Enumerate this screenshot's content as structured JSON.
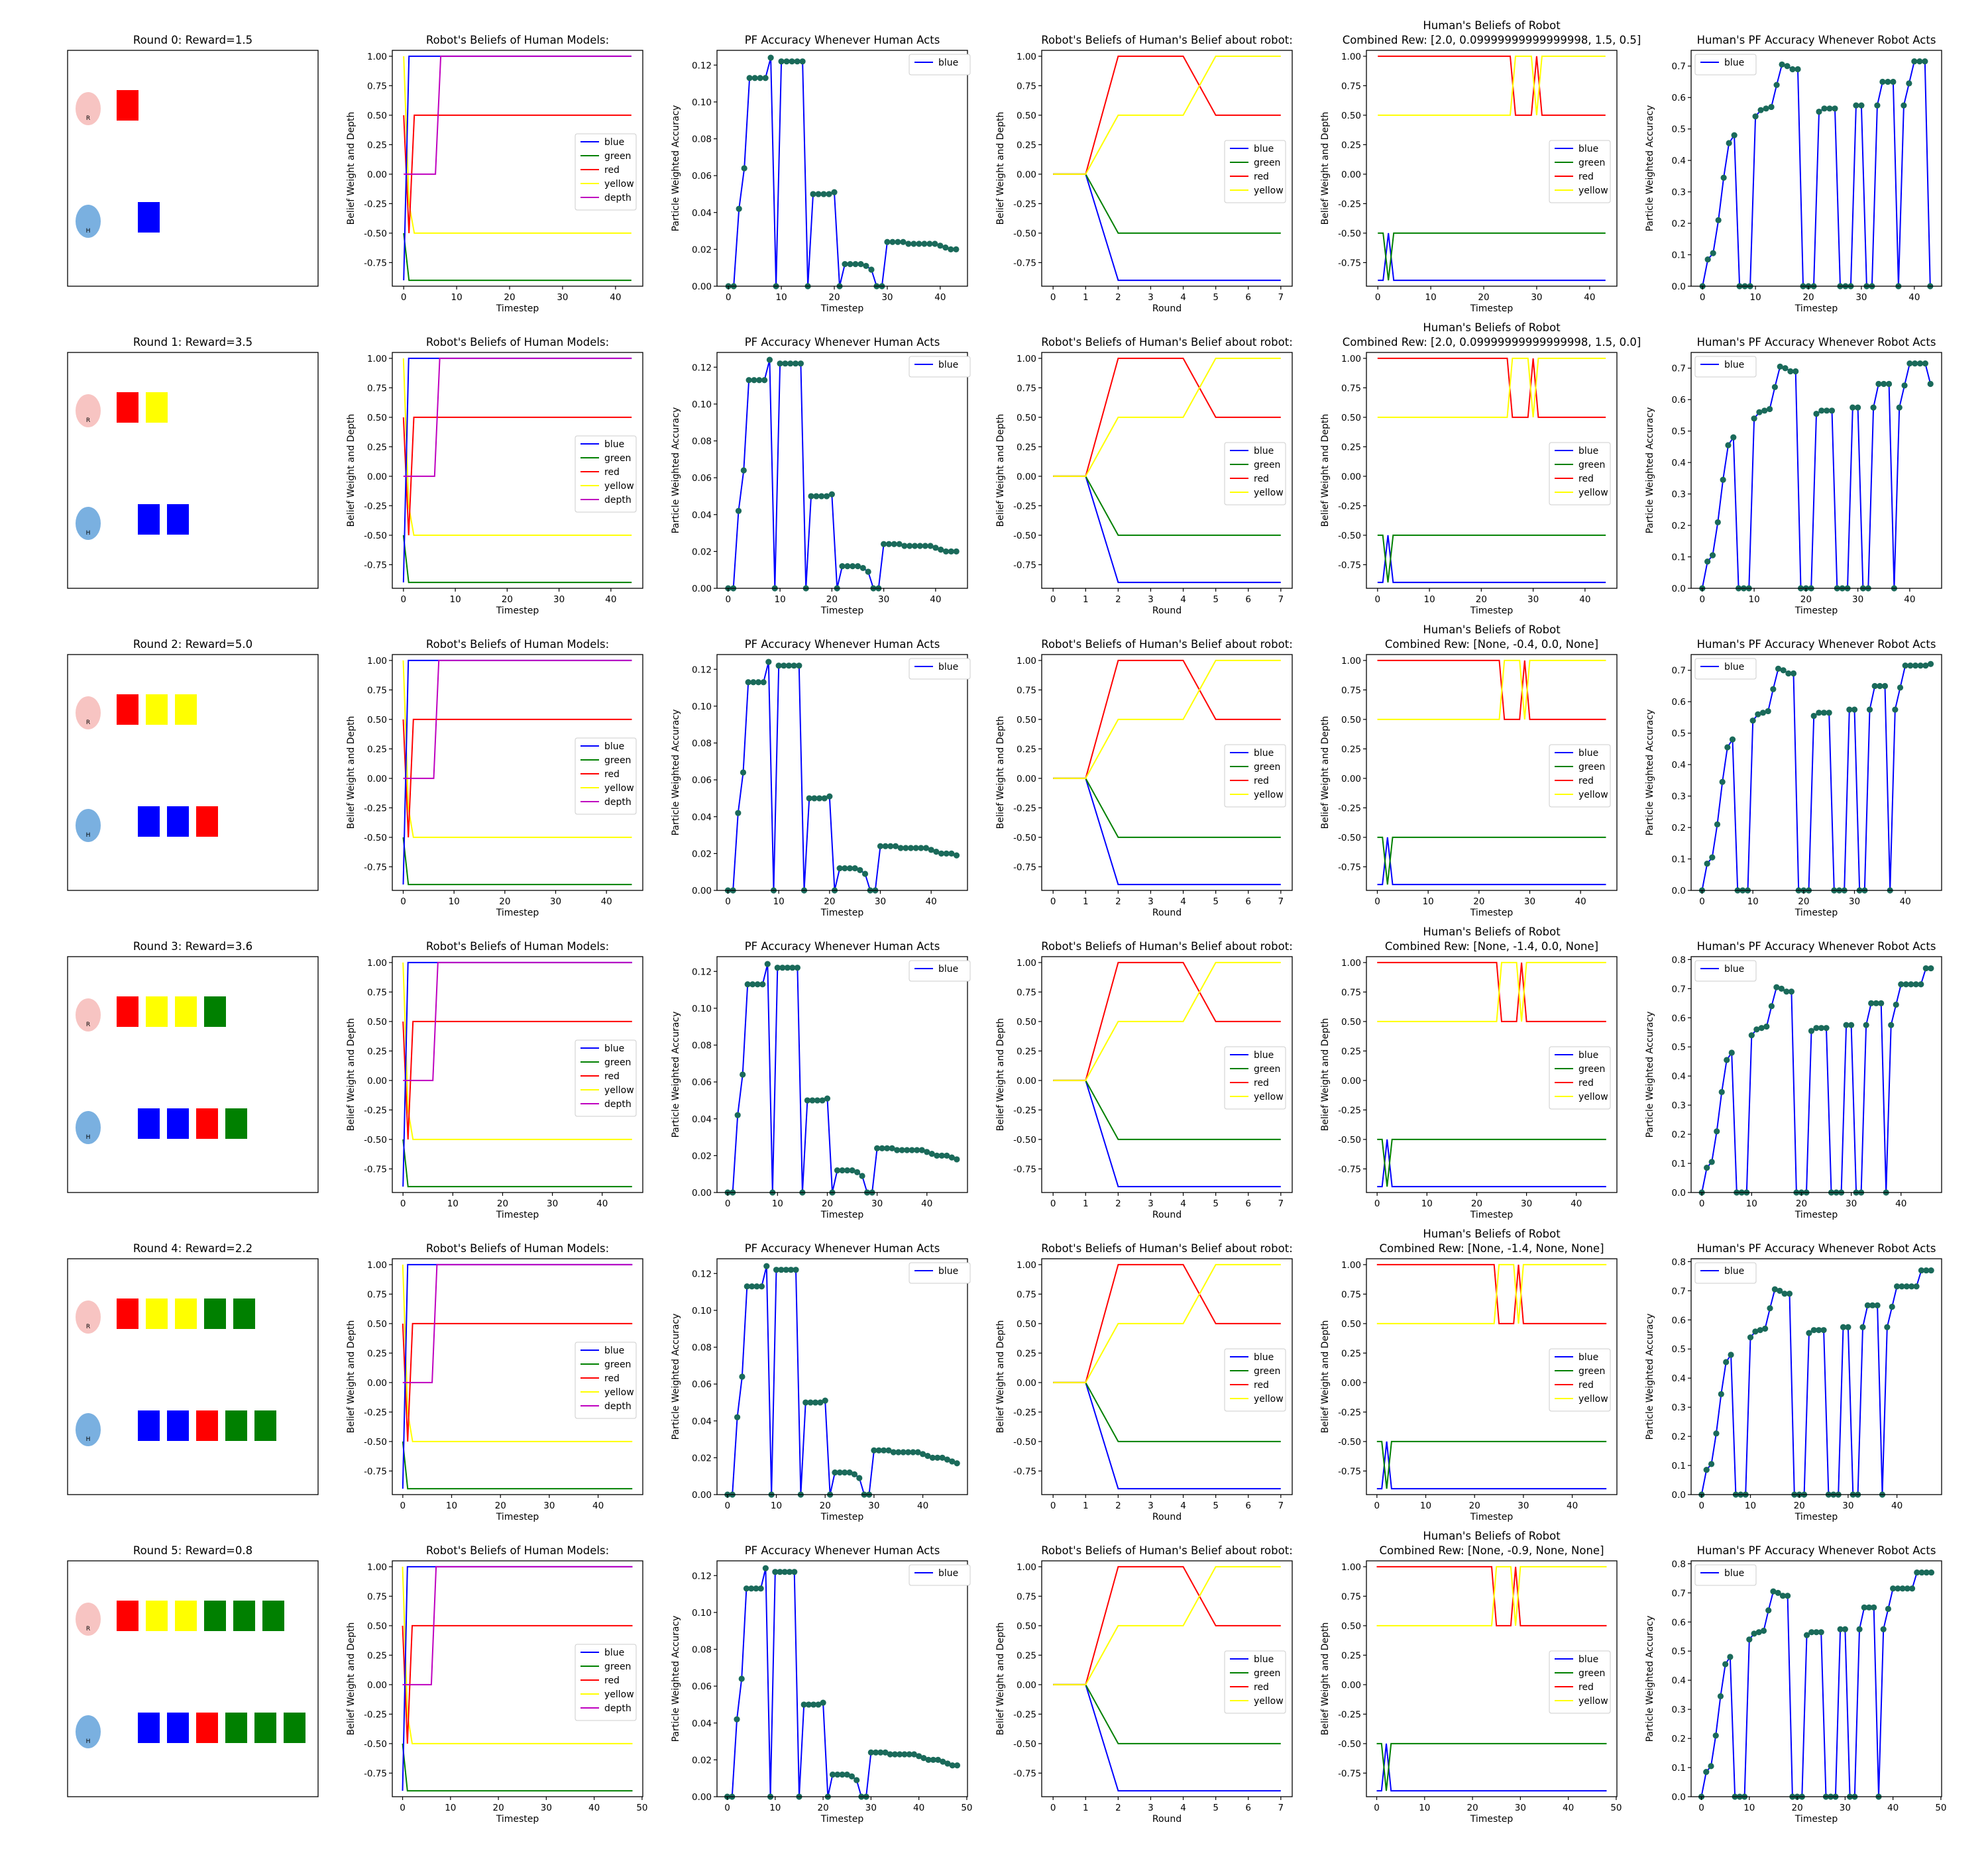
{
  "figure": {
    "ytitle_belief": "Belief Weight and Depth",
    "ytitle_pf": "Particle Weighted Accuracy",
    "xtitle_timestep": "Timestep",
    "xtitle_round": "Round"
  },
  "colors": {
    "blue": "#0000ff",
    "green": "#008000",
    "red": "#ff0000",
    "yellow": "#ffff00",
    "depth": "#bf00bf",
    "marker": "#1a6a5a",
    "robot": "#f7c4c2",
    "human": "#7ab0e0"
  },
  "rounds": [
    {
      "title": "Round 0: Reward=1.5",
      "robot_label": "R",
      "human_label": "H",
      "robot_blocks": [
        "red"
      ],
      "human_blocks": [
        "blue"
      ]
    },
    {
      "title": "Round 1: Reward=3.5",
      "robot_label": "R",
      "human_label": "H",
      "robot_blocks": [
        "red",
        "yellow"
      ],
      "human_blocks": [
        "blue",
        "blue"
      ]
    },
    {
      "title": "Round 2: Reward=5.0",
      "robot_label": "R",
      "human_label": "H",
      "robot_blocks": [
        "red",
        "yellow",
        "yellow"
      ],
      "human_blocks": [
        "blue",
        "blue",
        "red"
      ]
    },
    {
      "title": "Round 3: Reward=3.6",
      "robot_label": "R",
      "human_label": "H",
      "robot_blocks": [
        "red",
        "yellow",
        "yellow",
        "green"
      ],
      "human_blocks": [
        "blue",
        "blue",
        "red",
        "green"
      ]
    },
    {
      "title": "Round 4: Reward=2.2",
      "robot_label": "R",
      "human_label": "H",
      "robot_blocks": [
        "red",
        "yellow",
        "yellow",
        "green",
        "green"
      ],
      "human_blocks": [
        "blue",
        "blue",
        "red",
        "green",
        "green"
      ]
    },
    {
      "title": "Round 5: Reward=0.8",
      "robot_label": "R",
      "human_label": "H",
      "robot_blocks": [
        "red",
        "yellow",
        "yellow",
        "green",
        "green",
        "green"
      ],
      "human_blocks": [
        "blue",
        "blue",
        "red",
        "green",
        "green",
        "green"
      ]
    }
  ],
  "chart_data": {
    "type": "line",
    "rows": [
      {
        "xmax": 43,
        "col5_title1": "Human's Beliefs of Robot",
        "col5_title2": "Combined Rew: [2.0, 0.09999999999999998, 1.5, 0.5]",
        "xticks": [
          0,
          10,
          20,
          30,
          40
        ],
        "pf_yticks": [
          0.0,
          0.02,
          0.04,
          0.06,
          0.08,
          0.1,
          0.12
        ],
        "pf_ylim": [
          0,
          0.128
        ],
        "hpf_yticks": [
          0.0,
          0.1,
          0.2,
          0.3,
          0.4,
          0.5,
          0.6,
          0.7
        ],
        "hpf_ylim": [
          0,
          0.75
        ],
        "hpf_last": 0.0
      },
      {
        "xmax": 44,
        "col5_title1": "Human's Beliefs of Robot",
        "col5_title2": "Combined Rew: [2.0, 0.09999999999999998, 1.5, 0.0]",
        "xticks": [
          0,
          10,
          20,
          30,
          40
        ],
        "pf_yticks": [
          0.0,
          0.02,
          0.04,
          0.06,
          0.08,
          0.1,
          0.12
        ],
        "pf_ylim": [
          0,
          0.128
        ],
        "hpf_yticks": [
          0.0,
          0.1,
          0.2,
          0.3,
          0.4,
          0.5,
          0.6,
          0.7
        ],
        "hpf_ylim": [
          0,
          0.75
        ],
        "hpf_last": 0.65
      },
      {
        "xmax": 45,
        "col5_title1": "Human's Beliefs of Robot",
        "col5_title2": "Combined Rew: [None, -0.4, 0.0, None]",
        "xticks": [
          0,
          10,
          20,
          30,
          40
        ],
        "pf_yticks": [
          0.0,
          0.02,
          0.04,
          0.06,
          0.08,
          0.1,
          0.12
        ],
        "pf_ylim": [
          0,
          0.128
        ],
        "hpf_yticks": [
          0.0,
          0.1,
          0.2,
          0.3,
          0.4,
          0.5,
          0.6,
          0.7
        ],
        "hpf_ylim": [
          0,
          0.75
        ],
        "hpf_last": 0.72
      },
      {
        "xmax": 46,
        "col5_title1": "Human's Beliefs of Robot",
        "col5_title2": "Combined Rew: [None, -1.4, 0.0, None]",
        "xticks": [
          0,
          10,
          20,
          30,
          40
        ],
        "pf_yticks": [
          0.0,
          0.02,
          0.04,
          0.06,
          0.08,
          0.1,
          0.12
        ],
        "pf_ylim": [
          0,
          0.128
        ],
        "hpf_yticks": [
          0.0,
          0.1,
          0.2,
          0.3,
          0.4,
          0.5,
          0.6,
          0.7,
          0.8
        ],
        "hpf_ylim": [
          0,
          0.81
        ],
        "hpf_last": 0.77
      },
      {
        "xmax": 47,
        "col5_title1": "Human's Beliefs of Robot",
        "col5_title2": "Combined Rew: [None, -1.4, None, None]",
        "xticks": [
          0,
          10,
          20,
          30,
          40
        ],
        "pf_yticks": [
          0.0,
          0.02,
          0.04,
          0.06,
          0.08,
          0.1,
          0.12
        ],
        "pf_ylim": [
          0,
          0.128
        ],
        "hpf_yticks": [
          0.0,
          0.1,
          0.2,
          0.3,
          0.4,
          0.5,
          0.6,
          0.7,
          0.8
        ],
        "hpf_ylim": [
          0,
          0.81
        ],
        "hpf_last": 0.77
      },
      {
        "xmax": 48,
        "col5_title1": "Human's Beliefs of Robot",
        "col5_title2": "Combined Rew: [None, -0.9, None, None]",
        "xticks": [
          0,
          10,
          20,
          30,
          40,
          50
        ],
        "pf_yticks": [
          0.0,
          0.02,
          0.04,
          0.06,
          0.08,
          0.1,
          0.12
        ],
        "pf_ylim": [
          0,
          0.128
        ],
        "hpf_yticks": [
          0.0,
          0.1,
          0.2,
          0.3,
          0.4,
          0.5,
          0.6,
          0.7,
          0.8
        ],
        "hpf_ylim": [
          0,
          0.81
        ],
        "hpf_last": 0.77
      }
    ],
    "col2": {
      "title": "Robot's Beliefs of Human Models:",
      "ylim": [
        -0.95,
        1.05
      ],
      "yticks": [
        -0.75,
        -0.5,
        -0.25,
        0.0,
        0.25,
        0.5,
        0.75,
        1.0
      ],
      "legend": [
        "blue",
        "green",
        "red",
        "yellow",
        "depth"
      ],
      "series": {
        "blue": [
          [
            0,
            -0.9
          ],
          [
            1,
            1.0
          ],
          [
            99,
            1.0
          ]
        ],
        "green": [
          [
            0,
            -0.5
          ],
          [
            1,
            -0.9
          ],
          [
            99,
            -0.9
          ]
        ],
        "red": [
          [
            0,
            0.5
          ],
          [
            1,
            -0.5
          ],
          [
            2,
            0.5
          ],
          [
            99,
            0.5
          ]
        ],
        "yellow": [
          [
            0,
            1.0
          ],
          [
            1,
            -0.25
          ],
          [
            2,
            -0.5
          ],
          [
            99,
            -0.5
          ]
        ],
        "depth": [
          [
            0,
            0.0
          ],
          [
            6,
            0.0
          ],
          [
            7,
            1.0
          ],
          [
            99,
            1.0
          ]
        ]
      }
    },
    "col3": {
      "title": "PF Accuracy Whenever Human Acts",
      "legend": [
        "blue"
      ],
      "points": [
        [
          0,
          0
        ],
        [
          1,
          0
        ],
        [
          2,
          0.042
        ],
        [
          3,
          0.064
        ],
        [
          4,
          0.113
        ],
        [
          5,
          0.113
        ],
        [
          6,
          0.113
        ],
        [
          7,
          0.113
        ],
        [
          8,
          0.124
        ],
        [
          9,
          0
        ],
        [
          10,
          0.122
        ],
        [
          11,
          0.122
        ],
        [
          12,
          0.122
        ],
        [
          13,
          0.122
        ],
        [
          14,
          0.122
        ],
        [
          15,
          0
        ],
        [
          16,
          0.05
        ],
        [
          17,
          0.05
        ],
        [
          18,
          0.05
        ],
        [
          19,
          0.05
        ],
        [
          20,
          0.051
        ],
        [
          21,
          0
        ],
        [
          22,
          0.012
        ],
        [
          23,
          0.012
        ],
        [
          24,
          0.012
        ],
        [
          25,
          0.012
        ],
        [
          26,
          0.011
        ],
        [
          27,
          0.009
        ],
        [
          28,
          0
        ],
        [
          29,
          0
        ],
        [
          30,
          0.024
        ],
        [
          31,
          0.024
        ],
        [
          32,
          0.024
        ],
        [
          33,
          0.024
        ],
        [
          34,
          0.023
        ],
        [
          35,
          0.023
        ],
        [
          36,
          0.023
        ],
        [
          37,
          0.023
        ],
        [
          38,
          0.023
        ],
        [
          39,
          0.023
        ],
        [
          40,
          0.022
        ],
        [
          41,
          0.021
        ],
        [
          42,
          0.02
        ],
        [
          43,
          0.02
        ],
        [
          44,
          0.02
        ],
        [
          45,
          0.019
        ],
        [
          46,
          0.018
        ],
        [
          47,
          0.017
        ],
        [
          48,
          0.017
        ]
      ]
    },
    "col4": {
      "title": "Robot's Beliefs of Human's Belief about robot:",
      "xlim": [
        -0.35,
        7.35
      ],
      "xticks": [
        0,
        1,
        2,
        3,
        4,
        5,
        6,
        7
      ],
      "ylim": [
        -0.95,
        1.05
      ],
      "yticks": [
        -0.75,
        -0.5,
        -0.25,
        0.0,
        0.25,
        0.5,
        0.75,
        1.0
      ],
      "legend": [
        "blue",
        "green",
        "red",
        "yellow"
      ],
      "series": {
        "blue": [
          [
            0,
            0
          ],
          [
            1,
            0
          ],
          [
            2,
            -0.9
          ],
          [
            7,
            -0.9
          ]
        ],
        "green": [
          [
            0,
            0
          ],
          [
            1,
            0
          ],
          [
            2,
            -0.5
          ],
          [
            7,
            -0.5
          ]
        ],
        "red": [
          [
            0,
            0
          ],
          [
            1,
            0
          ],
          [
            2,
            1.0
          ],
          [
            4,
            1.0
          ],
          [
            5,
            0.5
          ],
          [
            7,
            0.5
          ]
        ],
        "yellow": [
          [
            0,
            0
          ],
          [
            1,
            0
          ],
          [
            2,
            0.5
          ],
          [
            4,
            0.5
          ],
          [
            5,
            1.0
          ],
          [
            7,
            1.0
          ]
        ]
      }
    },
    "col5": {
      "ylim": [
        -0.95,
        1.05
      ],
      "yticks": [
        -0.75,
        -0.5,
        -0.25,
        0.0,
        0.25,
        0.5,
        0.75,
        1.0
      ],
      "legend": [
        "blue",
        "green",
        "red",
        "yellow"
      ],
      "series": {
        "blue": [
          [
            0,
            -0.9
          ],
          [
            1,
            -0.9
          ],
          [
            2,
            -0.5
          ],
          [
            3,
            -0.9
          ],
          [
            99,
            -0.9
          ]
        ],
        "green": [
          [
            0,
            -0.5
          ],
          [
            1,
            -0.5
          ],
          [
            2,
            -0.9
          ],
          [
            3,
            -0.5
          ],
          [
            99,
            -0.5
          ]
        ],
        "red": [
          [
            0,
            1.0
          ],
          [
            25,
            1.0
          ],
          [
            26,
            0.5
          ],
          [
            29,
            0.5
          ],
          [
            30,
            1.0
          ],
          [
            31,
            0.5
          ],
          [
            99,
            0.5
          ]
        ],
        "yellow": [
          [
            0,
            0.5
          ],
          [
            25,
            0.5
          ],
          [
            26,
            1.0
          ],
          [
            29,
            1.0
          ],
          [
            30,
            0.5
          ],
          [
            31,
            1.0
          ],
          [
            99,
            1.0
          ]
        ]
      }
    },
    "col6": {
      "title": "Human's PF Accuracy Whenever Robot Acts",
      "legend": [
        "blue"
      ],
      "points": [
        [
          0,
          0
        ],
        [
          1,
          0.085
        ],
        [
          2,
          0.105
        ],
        [
          3,
          0.21
        ],
        [
          4,
          0.345
        ],
        [
          5,
          0.455
        ],
        [
          6,
          0.48
        ],
        [
          7,
          0
        ],
        [
          8,
          0
        ],
        [
          9,
          0
        ],
        [
          10,
          0.54
        ],
        [
          11,
          0.56
        ],
        [
          12,
          0.565
        ],
        [
          13,
          0.57
        ],
        [
          14,
          0.64
        ],
        [
          15,
          0.705
        ],
        [
          16,
          0.7
        ],
        [
          17,
          0.69
        ],
        [
          18,
          0.69
        ],
        [
          19,
          0
        ],
        [
          20,
          0
        ],
        [
          21,
          0
        ],
        [
          22,
          0.555
        ],
        [
          23,
          0.565
        ],
        [
          24,
          0.565
        ],
        [
          25,
          0.565
        ],
        [
          26,
          0
        ],
        [
          27,
          0
        ],
        [
          28,
          0
        ],
        [
          29,
          0.575
        ],
        [
          30,
          0.575
        ],
        [
          31,
          0
        ],
        [
          32,
          0
        ],
        [
          33,
          0.575
        ],
        [
          34,
          0.65
        ],
        [
          35,
          0.65
        ],
        [
          36,
          0.65
        ],
        [
          37,
          0
        ],
        [
          38,
          0.575
        ],
        [
          39,
          0.645
        ],
        [
          40,
          0.715
        ],
        [
          41,
          0.715
        ],
        [
          42,
          0.715
        ],
        [
          43,
          0.715
        ],
        [
          44,
          0.715
        ],
        [
          45,
          0.77
        ],
        [
          46,
          0.77
        ],
        [
          47,
          0.77
        ],
        [
          48,
          0.77
        ]
      ]
    }
  }
}
